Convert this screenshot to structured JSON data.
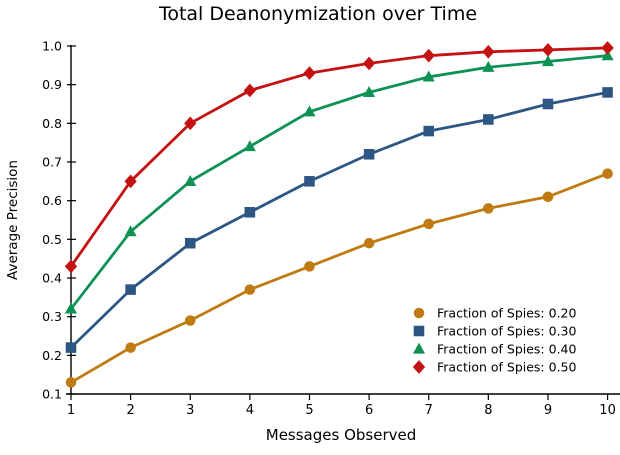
{
  "chart_data": {
    "type": "line",
    "title": "Total Deanonymization over Time",
    "xlabel": "Messages Observed",
    "ylabel": "Average Precision",
    "x": [
      1,
      2,
      3,
      4,
      5,
      6,
      7,
      8,
      9,
      10
    ],
    "xticks": [
      "1",
      "2",
      "3",
      "4",
      "5",
      "6",
      "7",
      "8",
      "9",
      "10"
    ],
    "yticks": [
      "0.1",
      "0.2",
      "0.3",
      "0.4",
      "0.5",
      "0.6",
      "0.7",
      "0.8",
      "0.9",
      "1.0"
    ],
    "xlim": [
      1,
      10
    ],
    "ylim": [
      0.1,
      1.0
    ],
    "grid": false,
    "legend_position": "lower right",
    "axis_color": "#000000",
    "series": [
      {
        "name": "Fraction of Spies: 0.20",
        "color": "#BF7B11",
        "marker": "circle",
        "values": [
          0.13,
          0.22,
          0.29,
          0.37,
          0.43,
          0.49,
          0.54,
          0.58,
          0.61,
          0.67
        ]
      },
      {
        "name": "Fraction of Spies: 0.30",
        "color": "#2E5684",
        "marker": "square",
        "values": [
          0.22,
          0.37,
          0.49,
          0.57,
          0.65,
          0.72,
          0.78,
          0.81,
          0.85,
          0.88
        ]
      },
      {
        "name": "Fraction of Spies: 0.40",
        "color": "#0E9155",
        "marker": "triangle",
        "values": [
          0.32,
          0.52,
          0.65,
          0.74,
          0.83,
          0.88,
          0.92,
          0.945,
          0.96,
          0.975
        ]
      },
      {
        "name": "Fraction of Spies: 0.50",
        "color": "#C41212",
        "marker": "diamond",
        "values": [
          0.43,
          0.65,
          0.8,
          0.885,
          0.93,
          0.955,
          0.975,
          0.985,
          0.99,
          0.995
        ]
      }
    ]
  }
}
